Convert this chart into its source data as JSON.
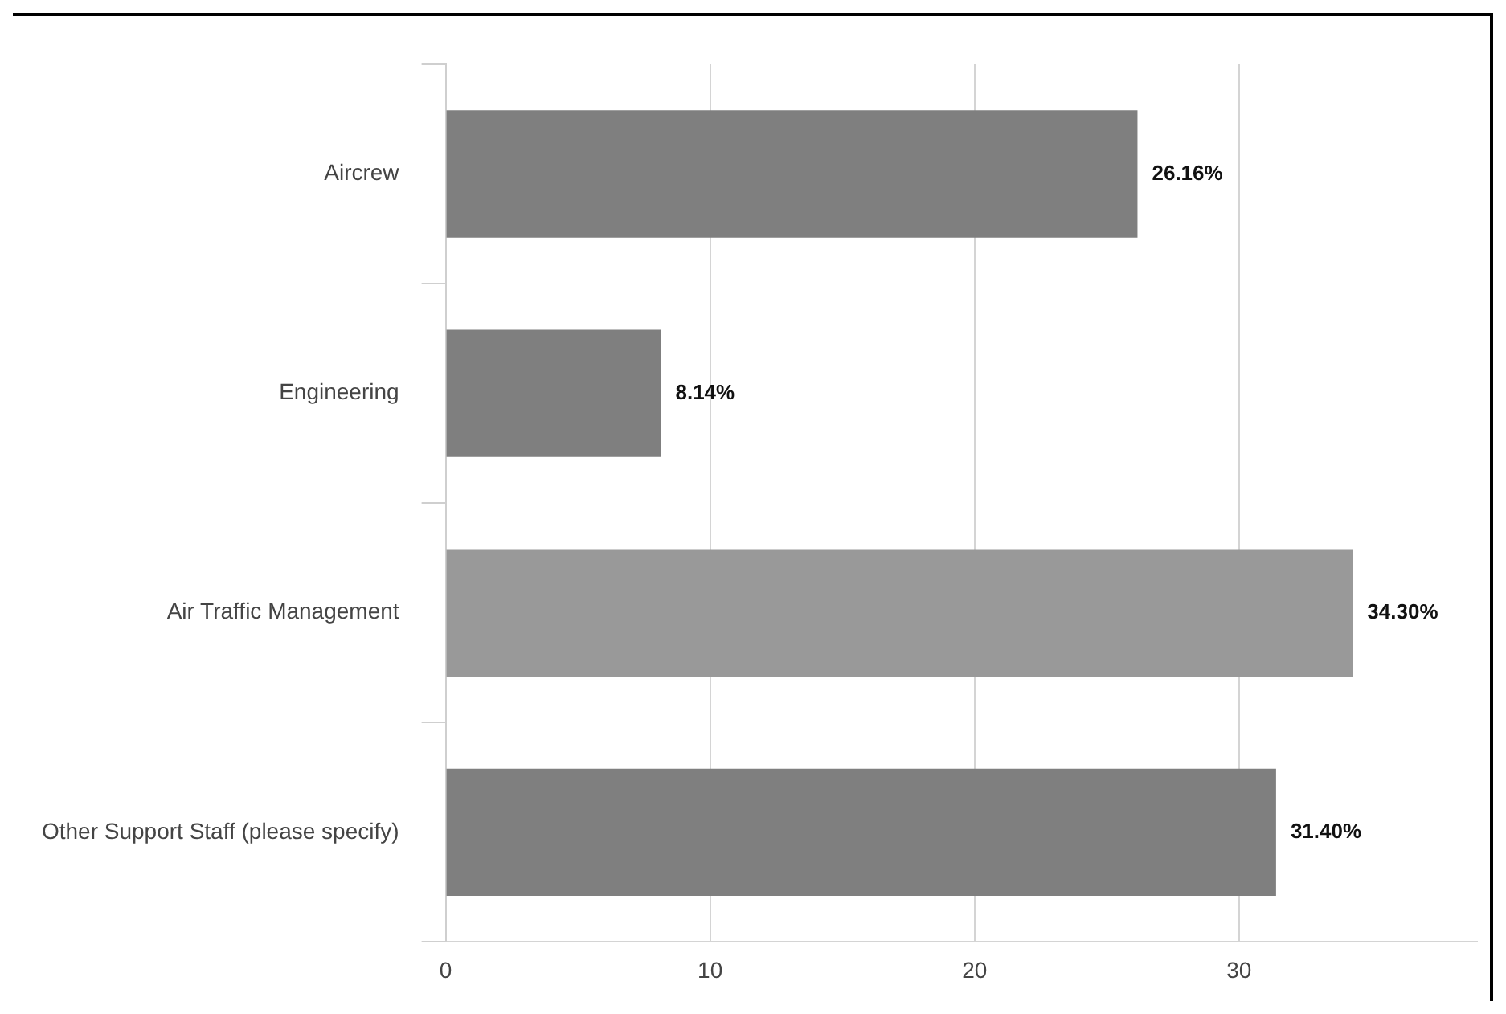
{
  "chart_data": {
    "type": "bar",
    "orientation": "horizontal",
    "categories": [
      "Aircrew",
      "Engineering",
      "Air Traffic Management",
      "Other Support Staff (please specify)"
    ],
    "values": [
      26.16,
      8.14,
      34.3,
      31.4
    ],
    "colors": [
      "#7f7f7f",
      "#7f7f7f",
      "#999999",
      "#7f7f7f"
    ],
    "value_labels": [
      "26.16%",
      "8.14%",
      "34.30%",
      "31.40%"
    ],
    "xlim": [
      0,
      39
    ],
    "xticks": [
      0,
      10,
      20,
      30
    ],
    "grid": "x",
    "legend": false
  }
}
